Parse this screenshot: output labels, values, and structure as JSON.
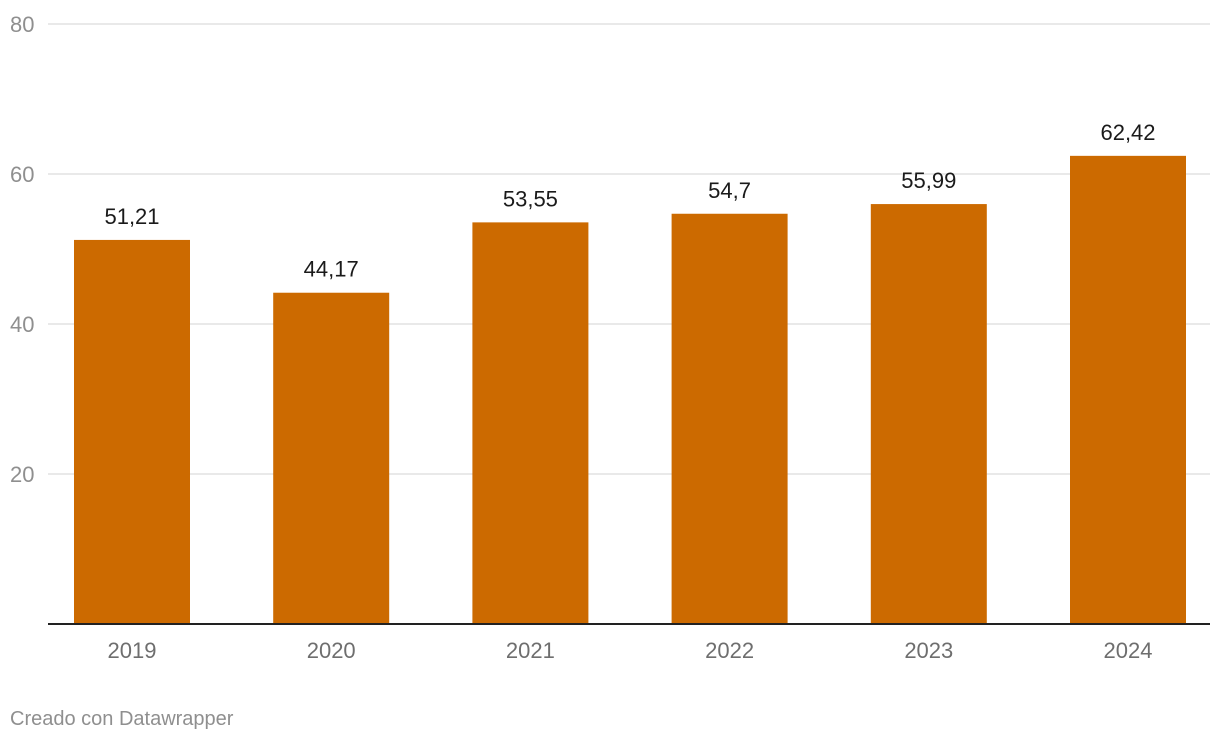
{
  "chart_data": {
    "type": "bar",
    "categories": [
      "2019",
      "2020",
      "2021",
      "2022",
      "2023",
      "2024"
    ],
    "values": [
      51.21,
      44.17,
      53.55,
      54.7,
      55.99,
      62.42
    ],
    "value_labels": [
      "51,21",
      "44,17",
      "53,55",
      "54,7",
      "55,99",
      "62,42"
    ],
    "ylim": [
      0,
      80
    ],
    "yticks": [
      20,
      40,
      60,
      80
    ],
    "ytick_labels": [
      "20",
      "40",
      "60",
      "80"
    ],
    "grid": true,
    "bar_color": "#cc6a00"
  },
  "footer": {
    "credit": "Creado con Datawrapper"
  }
}
